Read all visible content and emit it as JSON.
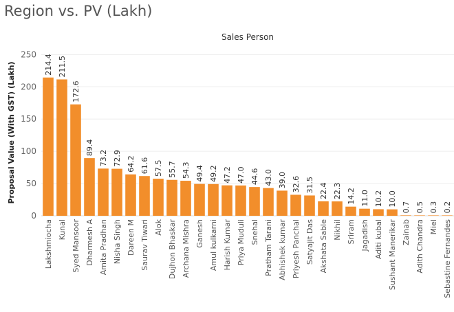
{
  "page": {
    "title": "Region vs. PV (Lakh)"
  },
  "chart_data": {
    "type": "bar",
    "title": "Region vs. PV (Lakh)",
    "header": "Sales Person",
    "xlabel": "",
    "ylabel": "Proposal Value (With GST) (Lakh)",
    "ylim": [
      0,
      260
    ],
    "yticks": [
      0,
      50,
      100,
      150,
      200,
      250
    ],
    "grid": true,
    "bar_color": "#f28e2b",
    "categories": [
      "Lakshmiocha",
      "Kunal",
      "Syed Mansoor",
      "Dharmesh A",
      "Amita Pradhan",
      "Nisha Singh",
      "Dareen M",
      "Saurav Tiwari",
      "Alok",
      "Dujhon Bhaskar",
      "Archana Mishra",
      "Ganesh",
      "Amul kulkarni",
      "Harish Kumar",
      "Priya Muduli",
      "Snehal",
      "Pratham Tarani",
      "Abhishek kumar",
      "Priyesh Panchal",
      "Satyajit Das",
      "Akshata Sable",
      "Nikhil",
      "Sriram",
      "Jagadish",
      "Aditi kubal",
      "Sushant Manerikar",
      "Zainab",
      "Adith Chandra",
      "Miel",
      "Sebastine Fernandes"
    ],
    "values": [
      214.4,
      211.5,
      172.6,
      89.4,
      73.2,
      72.9,
      64.2,
      61.6,
      57.5,
      55.7,
      54.3,
      49.4,
      49.2,
      47.2,
      47.0,
      44.6,
      43.0,
      39.0,
      32.6,
      31.5,
      22.4,
      22.3,
      14.2,
      11.0,
      10.2,
      10.0,
      0.7,
      0.5,
      0.3,
      0.2
    ],
    "data_labels": [
      "214.4",
      "211.5",
      "172.6",
      "89.4",
      "73.2",
      "72.9",
      "64.2",
      "61.6",
      "57.5",
      "55.7",
      "54.3",
      "49.4",
      "49.2",
      "47.2",
      "47.0",
      "44.6",
      "43.0",
      "39.0",
      "32.6",
      "31.5",
      "22.4",
      "22.3",
      "14.2",
      "11.0",
      "10.2",
      "10.0",
      "0.7",
      "0.5",
      "0.3",
      "0.2"
    ]
  }
}
